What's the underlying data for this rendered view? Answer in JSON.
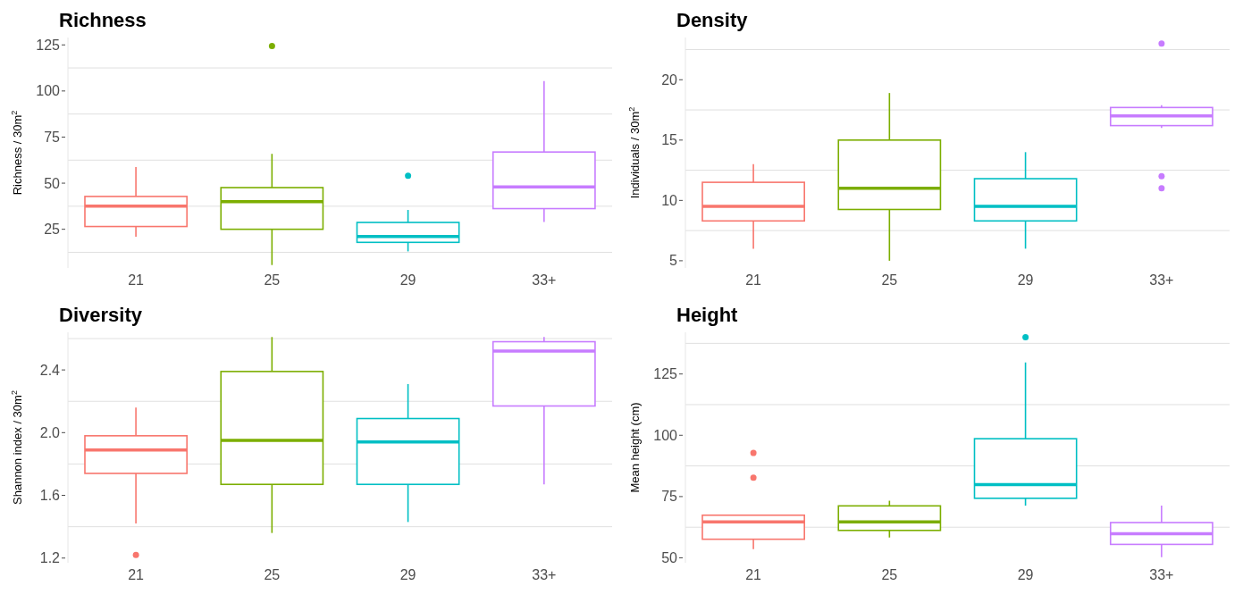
{
  "chart_data": [
    {
      "type": "box",
      "title": "Richness",
      "ylabel": "Richness / 30m$^{2}$",
      "categories": [
        "21",
        "25",
        "29",
        "33+"
      ],
      "colors": [
        "#f8766d",
        "#7cae00",
        "#00bfc4",
        "#c77cff"
      ],
      "boxes": [
        {
          "low": 20.9,
          "q1": 26.5,
          "median": 37.5,
          "q3": 42.8,
          "high": 58.8
        },
        {
          "low": 5.6,
          "q1": 25,
          "median": 40,
          "q3": 47.6,
          "high": 65.9,
          "outliers": [
            124.4
          ]
        },
        {
          "low": 13,
          "q1": 17.9,
          "median": 21.1,
          "q3": 28.7,
          "high": 35.5,
          "outliers": [
            54
          ]
        },
        {
          "low": 28.9,
          "q1": 36.2,
          "median": 48,
          "q3": 66.9,
          "high": 105.4
        }
      ],
      "ylim": [
        4,
        129
      ],
      "yticks": [
        {
          "value": 12.5,
          "label": null
        },
        25,
        {
          "value": 37.5,
          "label": null
        },
        50,
        {
          "value": 62.5,
          "label": null
        },
        75,
        {
          "value": 87.5,
          "label": null
        },
        100,
        {
          "value": 112.5,
          "label": null
        },
        125
      ],
      "grid": "y"
    },
    {
      "type": "box",
      "title": "Density",
      "ylabel": "Individuals / 30m$^{2}$",
      "categories": [
        "21",
        "25",
        "29",
        "33+"
      ],
      "colors": [
        "#f8766d",
        "#7cae00",
        "#00bfc4",
        "#c77cff"
      ],
      "boxes": [
        {
          "low": 6,
          "q1": 8.3,
          "median": 9.5,
          "q3": 11.5,
          "high": 13
        },
        {
          "low": 5,
          "q1": 9.25,
          "median": 11,
          "q3": 15,
          "high": 18.9
        },
        {
          "low": 6,
          "q1": 8.3,
          "median": 9.5,
          "q3": 11.8,
          "high": 14
        },
        {
          "low": 16,
          "q1": 16.2,
          "median": 17,
          "q3": 17.7,
          "high": 17.9,
          "outliers": [
            23,
            12,
            11
          ]
        }
      ],
      "ylim": [
        4.4,
        23.5
      ],
      "yticks": [
        5,
        {
          "value": 7.5,
          "label": null
        },
        10,
        {
          "value": 12.5,
          "label": null
        },
        15,
        {
          "value": 17.5,
          "label": null
        },
        20,
        {
          "value": 22.5,
          "label": null
        }
      ],
      "grid": "y"
    },
    {
      "type": "box",
      "title": "Diversity",
      "ylabel": "Shannon index / 30m$^{2}$",
      "categories": [
        "21",
        "25",
        "29",
        "33+"
      ],
      "colors": [
        "#f8766d",
        "#7cae00",
        "#00bfc4",
        "#c77cff"
      ],
      "boxes": [
        {
          "low": 1.42,
          "q1": 1.74,
          "median": 1.89,
          "q3": 1.98,
          "high": 2.16,
          "outliers": [
            1.22
          ]
        },
        {
          "low": 1.36,
          "q1": 1.67,
          "median": 1.95,
          "q3": 2.39,
          "high": 2.61
        },
        {
          "low": 1.43,
          "q1": 1.67,
          "median": 1.94,
          "q3": 2.09,
          "high": 2.31
        },
        {
          "low": 1.67,
          "q1": 2.17,
          "median": 2.52,
          "q3": 2.58,
          "high": 2.61
        }
      ],
      "ylim": [
        1.17,
        2.64
      ],
      "yticks": [
        1.2,
        {
          "value": 1.4,
          "label": null
        },
        {
          "value": 1.6,
          "label": "1.6"
        },
        {
          "value": 1.8,
          "label": null
        },
        {
          "value": 2,
          "label": "2.0"
        },
        {
          "value": 2.2,
          "label": null
        },
        2.4,
        {
          "value": 2.6,
          "label": null
        }
      ],
      "grid": "y"
    },
    {
      "type": "box",
      "title": "Height",
      "ylabel": "Mean height (cm)",
      "categories": [
        "21",
        "25",
        "29",
        "33+"
      ],
      "colors": [
        "#f8766d",
        "#7cae00",
        "#00bfc4",
        "#c77cff"
      ],
      "boxes": [
        {
          "low": 53.6,
          "q1": 57.6,
          "median": 64.7,
          "q3": 67.4,
          "high": 67.5,
          "outliers": [
            92.8,
            82.7
          ]
        },
        {
          "low": 58.3,
          "q1": 61.2,
          "median": 64.7,
          "q3": 71.2,
          "high": 73.3
        },
        {
          "low": 71.3,
          "q1": 74.3,
          "median": 79.9,
          "q3": 98.6,
          "high": 129.7,
          "outliers": [
            140
          ]
        },
        {
          "low": 50.3,
          "q1": 55.5,
          "median": 59.8,
          "q3": 64.4,
          "high": 71.3
        }
      ],
      "ylim": [
        48,
        142
      ],
      "yticks": [
        50,
        {
          "value": 62.5,
          "label": null
        },
        75,
        {
          "value": 87.5,
          "label": null
        },
        100,
        {
          "value": 112.5,
          "label": null
        },
        125,
        {
          "value": 137.5,
          "label": null
        }
      ],
      "grid": "y"
    }
  ]
}
